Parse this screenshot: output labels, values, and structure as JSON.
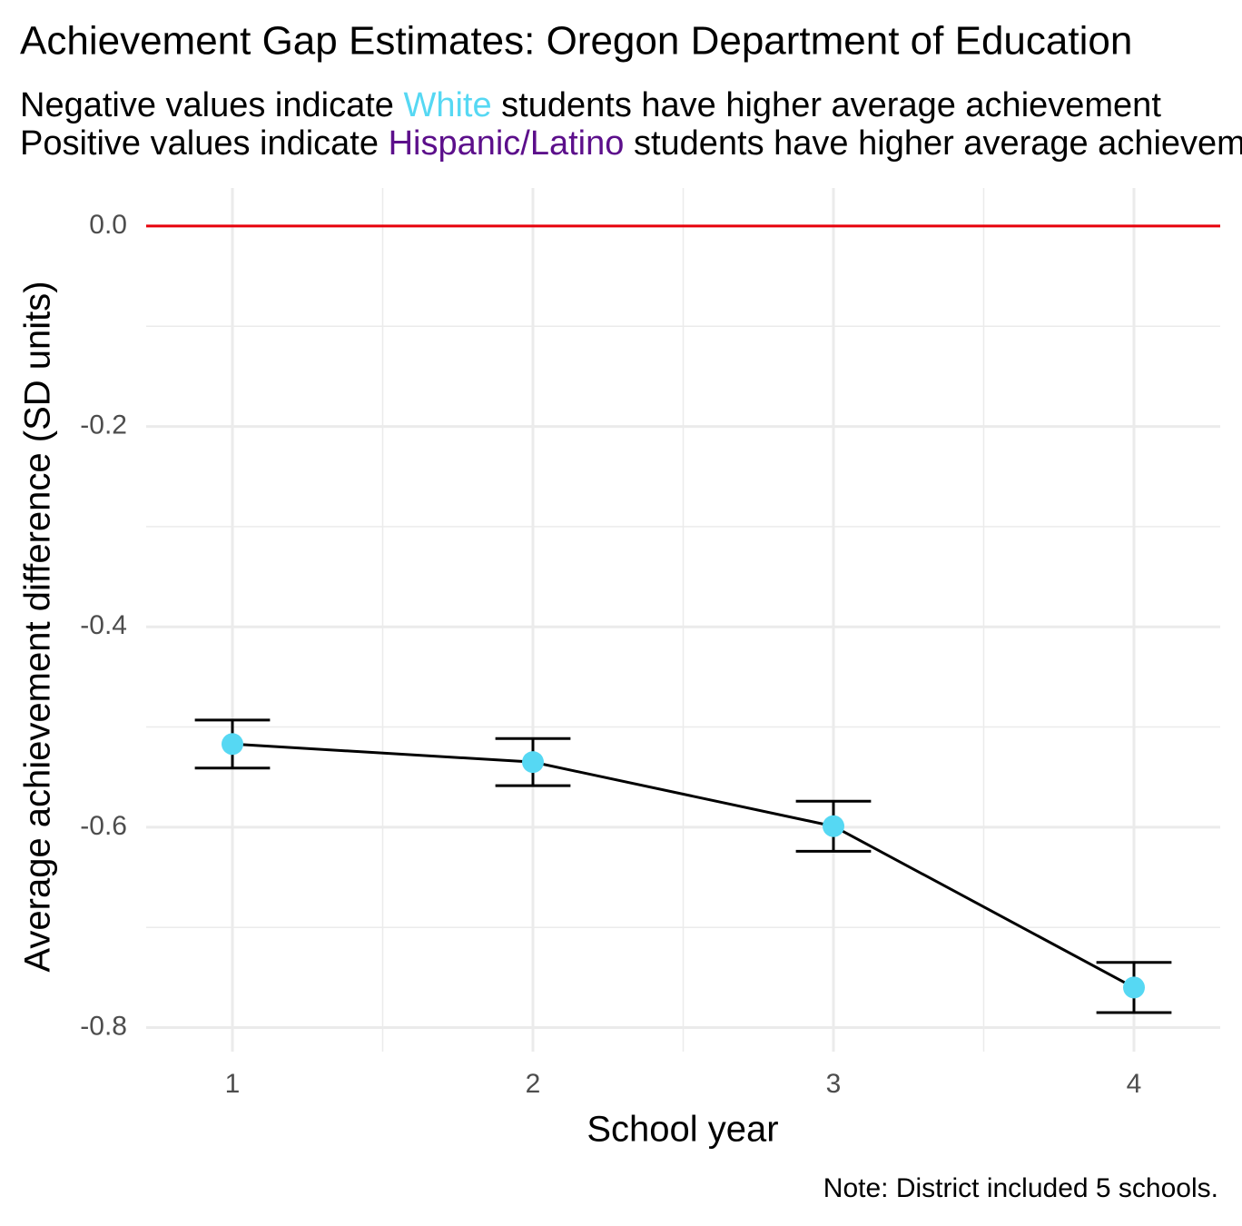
{
  "chart_data": {
    "type": "line",
    "title": "Achievement Gap Estimates: Oregon Department of Education",
    "subtitle": [
      {
        "before": "Negative values indicate ",
        "group": "White",
        "after": " students have higher average achievement",
        "color": "#56d8f3"
      },
      {
        "before": "Positive values indicate ",
        "group": "Hispanic/Latino",
        "after": " students have higher average achievement",
        "color": "#5c0f8b"
      }
    ],
    "x_label": "School year",
    "y_label": "Average achievement difference (SD units)",
    "caption": "Note: District included 5 schools.",
    "x": [
      1,
      2,
      3,
      4
    ],
    "values": [
      -0.517,
      -0.535,
      -0.599,
      -0.76
    ],
    "errors": [
      0.024,
      0.0235,
      0.025,
      0.025
    ],
    "color": "#56d8f3",
    "line_color": "#000000",
    "reference_line": {
      "value": 0,
      "color": "#e8000b"
    },
    "xlim": [
      0.713,
      4.287
    ],
    "ylim": [
      -0.824,
      0.038
    ],
    "xticks": [
      1,
      2,
      3,
      4
    ],
    "yticks": [
      {
        "value": 0,
        "label": "0.0"
      },
      -0.2,
      -0.4,
      -0.6,
      -0.8
    ],
    "grid": true
  }
}
